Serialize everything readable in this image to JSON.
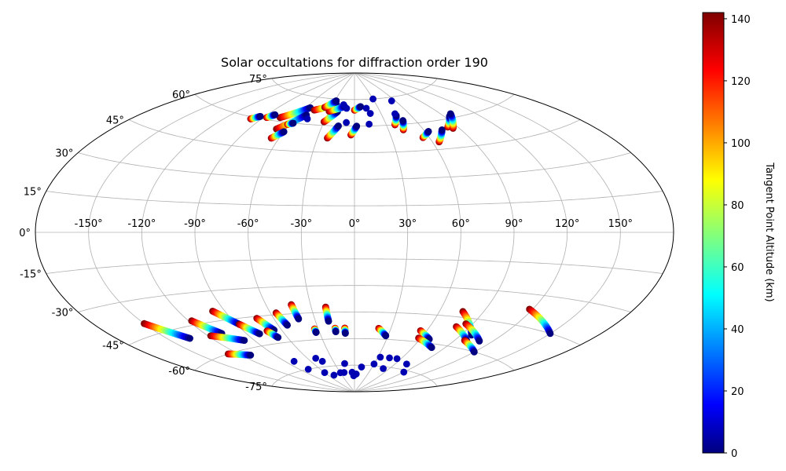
{
  "chart_data": {
    "type": "scatter",
    "projection": "aitoff",
    "title": "Solar occultations for diffraction order 190",
    "xlabel": "",
    "ylabel": "",
    "lon_tick_labels": [
      "-150°",
      "-120°",
      "-90°",
      "-60°",
      "-30°",
      "0°",
      "30°",
      "60°",
      "90°",
      "120°",
      "150°"
    ],
    "lat_tick_labels": [
      "75°",
      "60°",
      "45°",
      "30°",
      "15°",
      "0°",
      "-15°",
      "-30°",
      "-45°",
      "-60°",
      "-75°"
    ],
    "xlim": [
      -180,
      180
    ],
    "ylim": [
      -90,
      90
    ],
    "grid": true,
    "colorbar": {
      "label": "Tangent Point Altitude (km)",
      "range": [
        0,
        142
      ],
      "tick_labels": [
        "0",
        "20",
        "40",
        "60",
        "80",
        "100",
        "120",
        "140"
      ],
      "colormap": "jet"
    },
    "tracks": [
      {
        "lon": [
          -75,
          -55
        ],
        "lat": [
          62,
          69
        ]
      },
      {
        "lon": [
          -68,
          -52
        ],
        "lat": [
          56,
          65
        ]
      },
      {
        "lon": [
          -66,
          -60
        ],
        "lat": [
          51,
          55
        ]
      },
      {
        "lon": [
          -48,
          -25
        ],
        "lat": [
          68,
          72
        ]
      },
      {
        "lon": [
          -30,
          -20
        ],
        "lat": [
          62,
          68
        ]
      },
      {
        "lon": [
          -22,
          -15
        ],
        "lat": [
          53,
          60
        ]
      },
      {
        "lon": [
          -30,
          -13
        ],
        "lat": [
          68,
          71
        ]
      },
      {
        "lon": [
          -38,
          -28
        ],
        "lat": [
          70,
          74
        ]
      },
      {
        "lon": [
          -3,
          2
        ],
        "lat": [
          55,
          60
        ]
      },
      {
        "lon": [
          0,
          8
        ],
        "lat": [
          69,
          71
        ]
      },
      {
        "lon": [
          38,
          45
        ],
        "lat": [
          60,
          65
        ]
      },
      {
        "lon": [
          43,
          48
        ],
        "lat": [
          57,
          62
        ]
      },
      {
        "lon": [
          55,
          63
        ],
        "lat": [
          52,
          55
        ]
      },
      {
        "lon": [
          65,
          75
        ],
        "lat": [
          49,
          55
        ]
      },
      {
        "lon": [
          82,
          95
        ],
        "lat": [
          56,
          61
        ]
      },
      {
        "lon": [
          85,
          99
        ],
        "lat": [
          55,
          62
        ]
      },
      {
        "lon": [
          -99,
          -94
        ],
        "lat": [
          59,
          61
        ]
      },
      {
        "lon": [
          -87,
          -83
        ],
        "lat": [
          61,
          63
        ]
      },
      {
        "lon": [
          -62,
          -58
        ],
        "lat": [
          59,
          60
        ]
      },
      {
        "lon": [
          -150,
          -135
        ],
        "lat": [
          -40,
          -50
        ]
      },
      {
        "lon": [
          -118,
          -108
        ],
        "lat": [
          -43,
          -51
        ]
      },
      {
        "lon": [
          -118,
          -98
        ],
        "lat": [
          -51,
          -56
        ]
      },
      {
        "lon": [
          -128,
          -112
        ],
        "lat": [
          -60,
          -63
        ]
      },
      {
        "lon": [
          -98,
          -88
        ],
        "lat": [
          -40,
          -48
        ]
      },
      {
        "lon": [
          -88,
          -80
        ],
        "lat": [
          -48,
          -54
        ]
      },
      {
        "lon": [
          -72,
          -66
        ],
        "lat": [
          -46,
          -53
        ]
      },
      {
        "lon": [
          -72,
          -68
        ],
        "lat": [
          -53,
          -57
        ]
      },
      {
        "lon": [
          -56,
          -53
        ],
        "lat": [
          -44,
          -51
        ]
      },
      {
        "lon": [
          -43,
          -42
        ],
        "lat": [
          -40,
          -48
        ]
      },
      {
        "lon": [
          -33,
          -33
        ],
        "lat": [
          -54,
          -56
        ]
      },
      {
        "lon": [
          -20,
          -20
        ],
        "lat": [
          -42,
          -50
        ]
      },
      {
        "lon": [
          -16,
          -16
        ],
        "lat": [
          -54,
          -56
        ]
      },
      {
        "lon": [
          -8,
          -8
        ],
        "lat": [
          -54,
          -57
        ]
      },
      {
        "lon": [
          20,
          28
        ],
        "lat": [
          -54,
          -58
        ]
      },
      {
        "lon": [
          55,
          68
        ],
        "lat": [
          -54,
          -58
        ]
      },
      {
        "lon": [
          58,
          78
        ],
        "lat": [
          -58,
          -62
        ]
      },
      {
        "lon": [
          80,
          100
        ],
        "lat": [
          -50,
          -56
        ]
      },
      {
        "lon": [
          76,
          98
        ],
        "lat": [
          -42,
          -53
        ]
      },
      {
        "lon": [
          85,
          110
        ],
        "lat": [
          -48,
          -55
        ]
      },
      {
        "lon": [
          98,
          120
        ],
        "lat": [
          -56,
          -60
        ]
      },
      {
        "lon": [
          118,
          150
        ],
        "lat": [
          -37,
          -45
        ]
      }
    ],
    "points": [
      {
        "lon": -2,
        "lat": -81
      },
      {
        "lon": 4,
        "lat": -80
      },
      {
        "lon": -5,
        "lat": -79
      },
      {
        "lon": 12,
        "lat": -76
      },
      {
        "lon": 30,
        "lat": -74
      },
      {
        "lon": 33,
        "lat": -70
      },
      {
        "lon": 45,
        "lat": -70
      },
      {
        "lon": 55,
        "lat": -70
      },
      {
        "lon": 50,
        "lat": -76
      },
      {
        "lon": -80,
        "lat": -70
      },
      {
        "lon": -78,
        "lat": -75
      },
      {
        "lon": -60,
        "lat": -78
      },
      {
        "lon": -48,
        "lat": -80
      },
      {
        "lon": -30,
        "lat": -79
      },
      {
        "lon": -22,
        "lat": -79
      },
      {
        "lon": -15,
        "lat": -74
      },
      {
        "lon": -45,
        "lat": -72
      },
      {
        "lon": -50,
        "lat": -70
      },
      {
        "lon": 75,
        "lat": -72
      },
      {
        "lon": 90,
        "lat": -76
      },
      {
        "lon": -15,
        "lat": 72
      },
      {
        "lon": -10,
        "lat": 70
      },
      {
        "lon": 15,
        "lat": 70
      },
      {
        "lon": 18,
        "lat": 67
      },
      {
        "lon": 30,
        "lat": 75
      },
      {
        "lon": 55,
        "lat": 73
      },
      {
        "lon": -8,
        "lat": 62
      },
      {
        "lon": 14,
        "lat": 61
      },
      {
        "lon": -48,
        "lat": 63
      },
      {
        "lon": 45,
        "lat": 66
      }
    ]
  }
}
